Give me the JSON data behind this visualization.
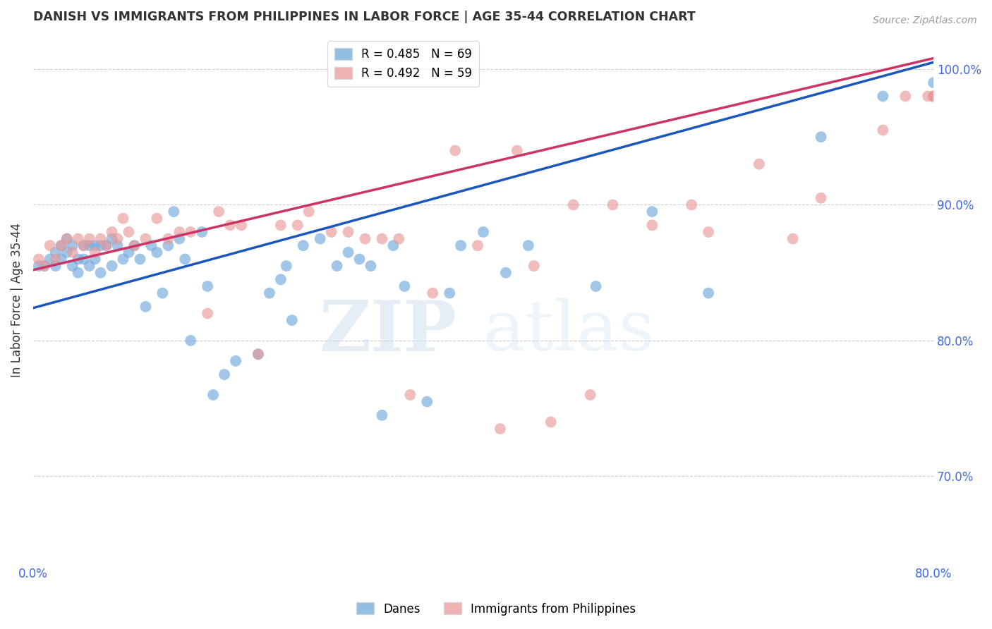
{
  "title": "DANISH VS IMMIGRANTS FROM PHILIPPINES IN LABOR FORCE | AGE 35-44 CORRELATION CHART",
  "source": "Source: ZipAtlas.com",
  "ylabel": "In Labor Force | Age 35-44",
  "xlim": [
    0.0,
    0.8
  ],
  "ylim": [
    0.635,
    1.025
  ],
  "yticks_right": [
    0.7,
    0.8,
    0.9,
    1.0
  ],
  "ytick_labels_right": [
    "70.0%",
    "80.0%",
    "90.0%",
    "100.0%"
  ],
  "xticks": [
    0.0,
    0.1,
    0.2,
    0.3,
    0.4,
    0.5,
    0.6,
    0.7,
    0.8
  ],
  "xtick_labels": [
    "0.0%",
    "",
    "",
    "",
    "",
    "",
    "",
    "",
    "80.0%"
  ],
  "danes_color": "#6fa8dc",
  "philippines_color": "#ea9999",
  "trend_danes_color": "#1a56bb",
  "trend_philippines_color": "#cc3366",
  "danes_R": 0.485,
  "danes_N": 69,
  "philippines_R": 0.492,
  "philippines_N": 59,
  "danes_x": [
    0.005,
    0.01,
    0.015,
    0.02,
    0.02,
    0.025,
    0.025,
    0.03,
    0.03,
    0.035,
    0.035,
    0.04,
    0.04,
    0.045,
    0.045,
    0.05,
    0.05,
    0.055,
    0.055,
    0.06,
    0.06,
    0.065,
    0.07,
    0.07,
    0.075,
    0.08,
    0.085,
    0.09,
    0.095,
    0.1,
    0.105,
    0.11,
    0.115,
    0.12,
    0.125,
    0.13,
    0.135,
    0.14,
    0.15,
    0.155,
    0.16,
    0.17,
    0.18,
    0.2,
    0.21,
    0.22,
    0.225,
    0.23,
    0.24,
    0.255,
    0.27,
    0.28,
    0.29,
    0.3,
    0.31,
    0.32,
    0.33,
    0.35,
    0.37,
    0.38,
    0.4,
    0.42,
    0.44,
    0.5,
    0.55,
    0.6,
    0.7,
    0.755,
    0.8
  ],
  "danes_y": [
    0.855,
    0.855,
    0.86,
    0.855,
    0.865,
    0.87,
    0.86,
    0.875,
    0.865,
    0.855,
    0.87,
    0.85,
    0.86,
    0.87,
    0.86,
    0.855,
    0.87,
    0.87,
    0.86,
    0.85,
    0.87,
    0.87,
    0.875,
    0.855,
    0.87,
    0.86,
    0.865,
    0.87,
    0.86,
    0.825,
    0.87,
    0.865,
    0.835,
    0.87,
    0.895,
    0.875,
    0.86,
    0.8,
    0.88,
    0.84,
    0.76,
    0.775,
    0.785,
    0.79,
    0.835,
    0.845,
    0.855,
    0.815,
    0.87,
    0.875,
    0.855,
    0.865,
    0.86,
    0.855,
    0.745,
    0.87,
    0.84,
    0.755,
    0.835,
    0.87,
    0.88,
    0.85,
    0.87,
    0.84,
    0.895,
    0.835,
    0.95,
    0.98,
    0.99
  ],
  "philippines_x": [
    0.005,
    0.01,
    0.015,
    0.02,
    0.025,
    0.03,
    0.035,
    0.04,
    0.045,
    0.05,
    0.055,
    0.06,
    0.065,
    0.07,
    0.075,
    0.08,
    0.085,
    0.09,
    0.1,
    0.11,
    0.12,
    0.13,
    0.14,
    0.155,
    0.165,
    0.175,
    0.185,
    0.2,
    0.22,
    0.235,
    0.245,
    0.265,
    0.28,
    0.295,
    0.31,
    0.325,
    0.335,
    0.355,
    0.375,
    0.395,
    0.415,
    0.43,
    0.445,
    0.46,
    0.48,
    0.495,
    0.515,
    0.55,
    0.585,
    0.6,
    0.645,
    0.675,
    0.7,
    0.755,
    0.775,
    0.795,
    0.8,
    0.8,
    0.8
  ],
  "philippines_y": [
    0.86,
    0.855,
    0.87,
    0.86,
    0.87,
    0.875,
    0.865,
    0.875,
    0.87,
    0.875,
    0.865,
    0.875,
    0.87,
    0.88,
    0.875,
    0.89,
    0.88,
    0.87,
    0.875,
    0.89,
    0.875,
    0.88,
    0.88,
    0.82,
    0.895,
    0.885,
    0.885,
    0.79,
    0.885,
    0.885,
    0.895,
    0.88,
    0.88,
    0.875,
    0.875,
    0.875,
    0.76,
    0.835,
    0.94,
    0.87,
    0.735,
    0.94,
    0.855,
    0.74,
    0.9,
    0.76,
    0.9,
    0.885,
    0.9,
    0.88,
    0.93,
    0.875,
    0.905,
    0.955,
    0.98,
    0.98,
    0.98,
    0.98,
    0.98
  ],
  "watermark_zip": "ZIP",
  "watermark_atlas": "atlas",
  "background_color": "#ffffff",
  "grid_color": "#cccccc",
  "title_color": "#333333",
  "axis_label_color": "#333333",
  "right_tick_color": "#4169e1",
  "x_tick_color": "#4169e1",
  "legend_danes_label": "R = 0.485   N = 69",
  "legend_philippines_label": "R = 0.492   N = 59",
  "legend_danes_series": "Danes",
  "legend_philippines_series": "Immigrants from Philippines",
  "trend_blue_x0": 0.0,
  "trend_blue_y0": 0.824,
  "trend_blue_x1": 0.8,
  "trend_blue_y1": 1.005,
  "trend_pink_x0": 0.0,
  "trend_pink_y0": 0.852,
  "trend_pink_x1": 0.8,
  "trend_pink_y1": 1.008
}
